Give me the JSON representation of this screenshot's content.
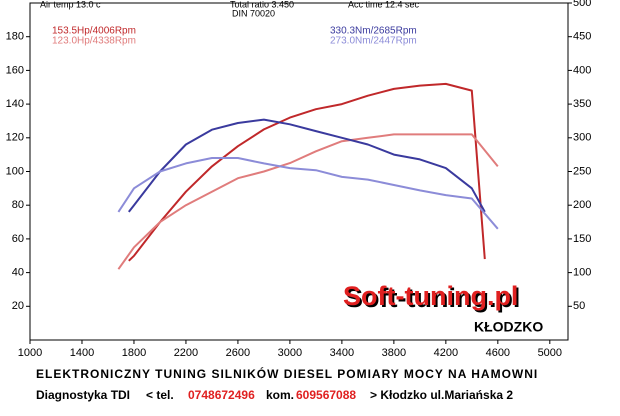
{
  "header": {
    "air_temp": "Air temp   13.0 c",
    "total_ratio": "Total ratio 3.450",
    "din": "DIN 70020",
    "acc_time": "Acc time   12.4 sec"
  },
  "chart_data": {
    "type": "line",
    "xlim": [
      1000,
      5140
    ],
    "xticks": [
      1000,
      1400,
      1800,
      2200,
      2600,
      3000,
      3400,
      3800,
      4200,
      4600,
      5000
    ],
    "ylim": [
      0,
      200
    ],
    "yticks": [
      20,
      40,
      60,
      80,
      100,
      120,
      140,
      160,
      180
    ],
    "y2lim": [
      0,
      500
    ],
    "y2ticks": [
      50,
      100,
      150,
      200,
      250,
      300,
      350,
      400,
      450,
      500
    ],
    "series": [
      {
        "name": "153.5Hp/4006Rpm",
        "color": "#c0282a",
        "x": [
          1760,
          1800,
          2000,
          2200,
          2400,
          2600,
          2800,
          3000,
          3200,
          3400,
          3600,
          3800,
          4000,
          4200,
          4400,
          4500
        ],
        "values": [
          47,
          50,
          70,
          88,
          103,
          115,
          125,
          132,
          137,
          140,
          145,
          149,
          151,
          152,
          148,
          48
        ]
      },
      {
        "name": "123.0Hp/4338Rpm",
        "color": "#e07c7c",
        "x": [
          1680,
          1800,
          2000,
          2200,
          2400,
          2600,
          2800,
          3000,
          3200,
          3400,
          3600,
          3800,
          4000,
          4200,
          4400,
          4600
        ],
        "values": [
          42,
          55,
          70,
          80,
          88,
          96,
          100,
          105,
          112,
          118,
          120,
          122,
          122,
          122,
          122,
          103
        ]
      },
      {
        "name": "330.3Nm/2685Rpm",
        "color": "#3a3a9e",
        "axis": "y2",
        "x": [
          1760,
          1800,
          2000,
          2200,
          2400,
          2600,
          2800,
          3000,
          3200,
          3400,
          3600,
          3800,
          4000,
          4200,
          4400,
          4500
        ],
        "values": [
          190,
          200,
          250,
          290,
          312,
          322,
          327,
          320,
          310,
          300,
          290,
          275,
          268,
          255,
          225,
          190
        ]
      },
      {
        "name": "273.0Nm/2447Rpm",
        "color": "#8c8cd8",
        "axis": "y2",
        "x": [
          1680,
          1800,
          2000,
          2200,
          2400,
          2600,
          2800,
          3000,
          3200,
          3400,
          3600,
          3800,
          4000,
          4200,
          4400,
          4600
        ],
        "values": [
          190,
          225,
          250,
          262,
          270,
          270,
          262,
          255,
          252,
          242,
          238,
          230,
          222,
          215,
          210,
          165
        ]
      }
    ]
  },
  "logo": {
    "brand": "Soft-tuning.pl",
    "city": "KŁODZKO"
  },
  "footer": {
    "line1": "ELEKTRONICZNY TUNING SILNIKÓW DIESEL  POMIARY MOCY NA HAMOWNI",
    "company": "Diagnostyka TDI",
    "tel_label": "< tel.",
    "tel": "0748672496",
    "kom_label": "kom.",
    "kom": "609567088",
    "address": "> Kłodzko ul.Mariańska 2"
  }
}
